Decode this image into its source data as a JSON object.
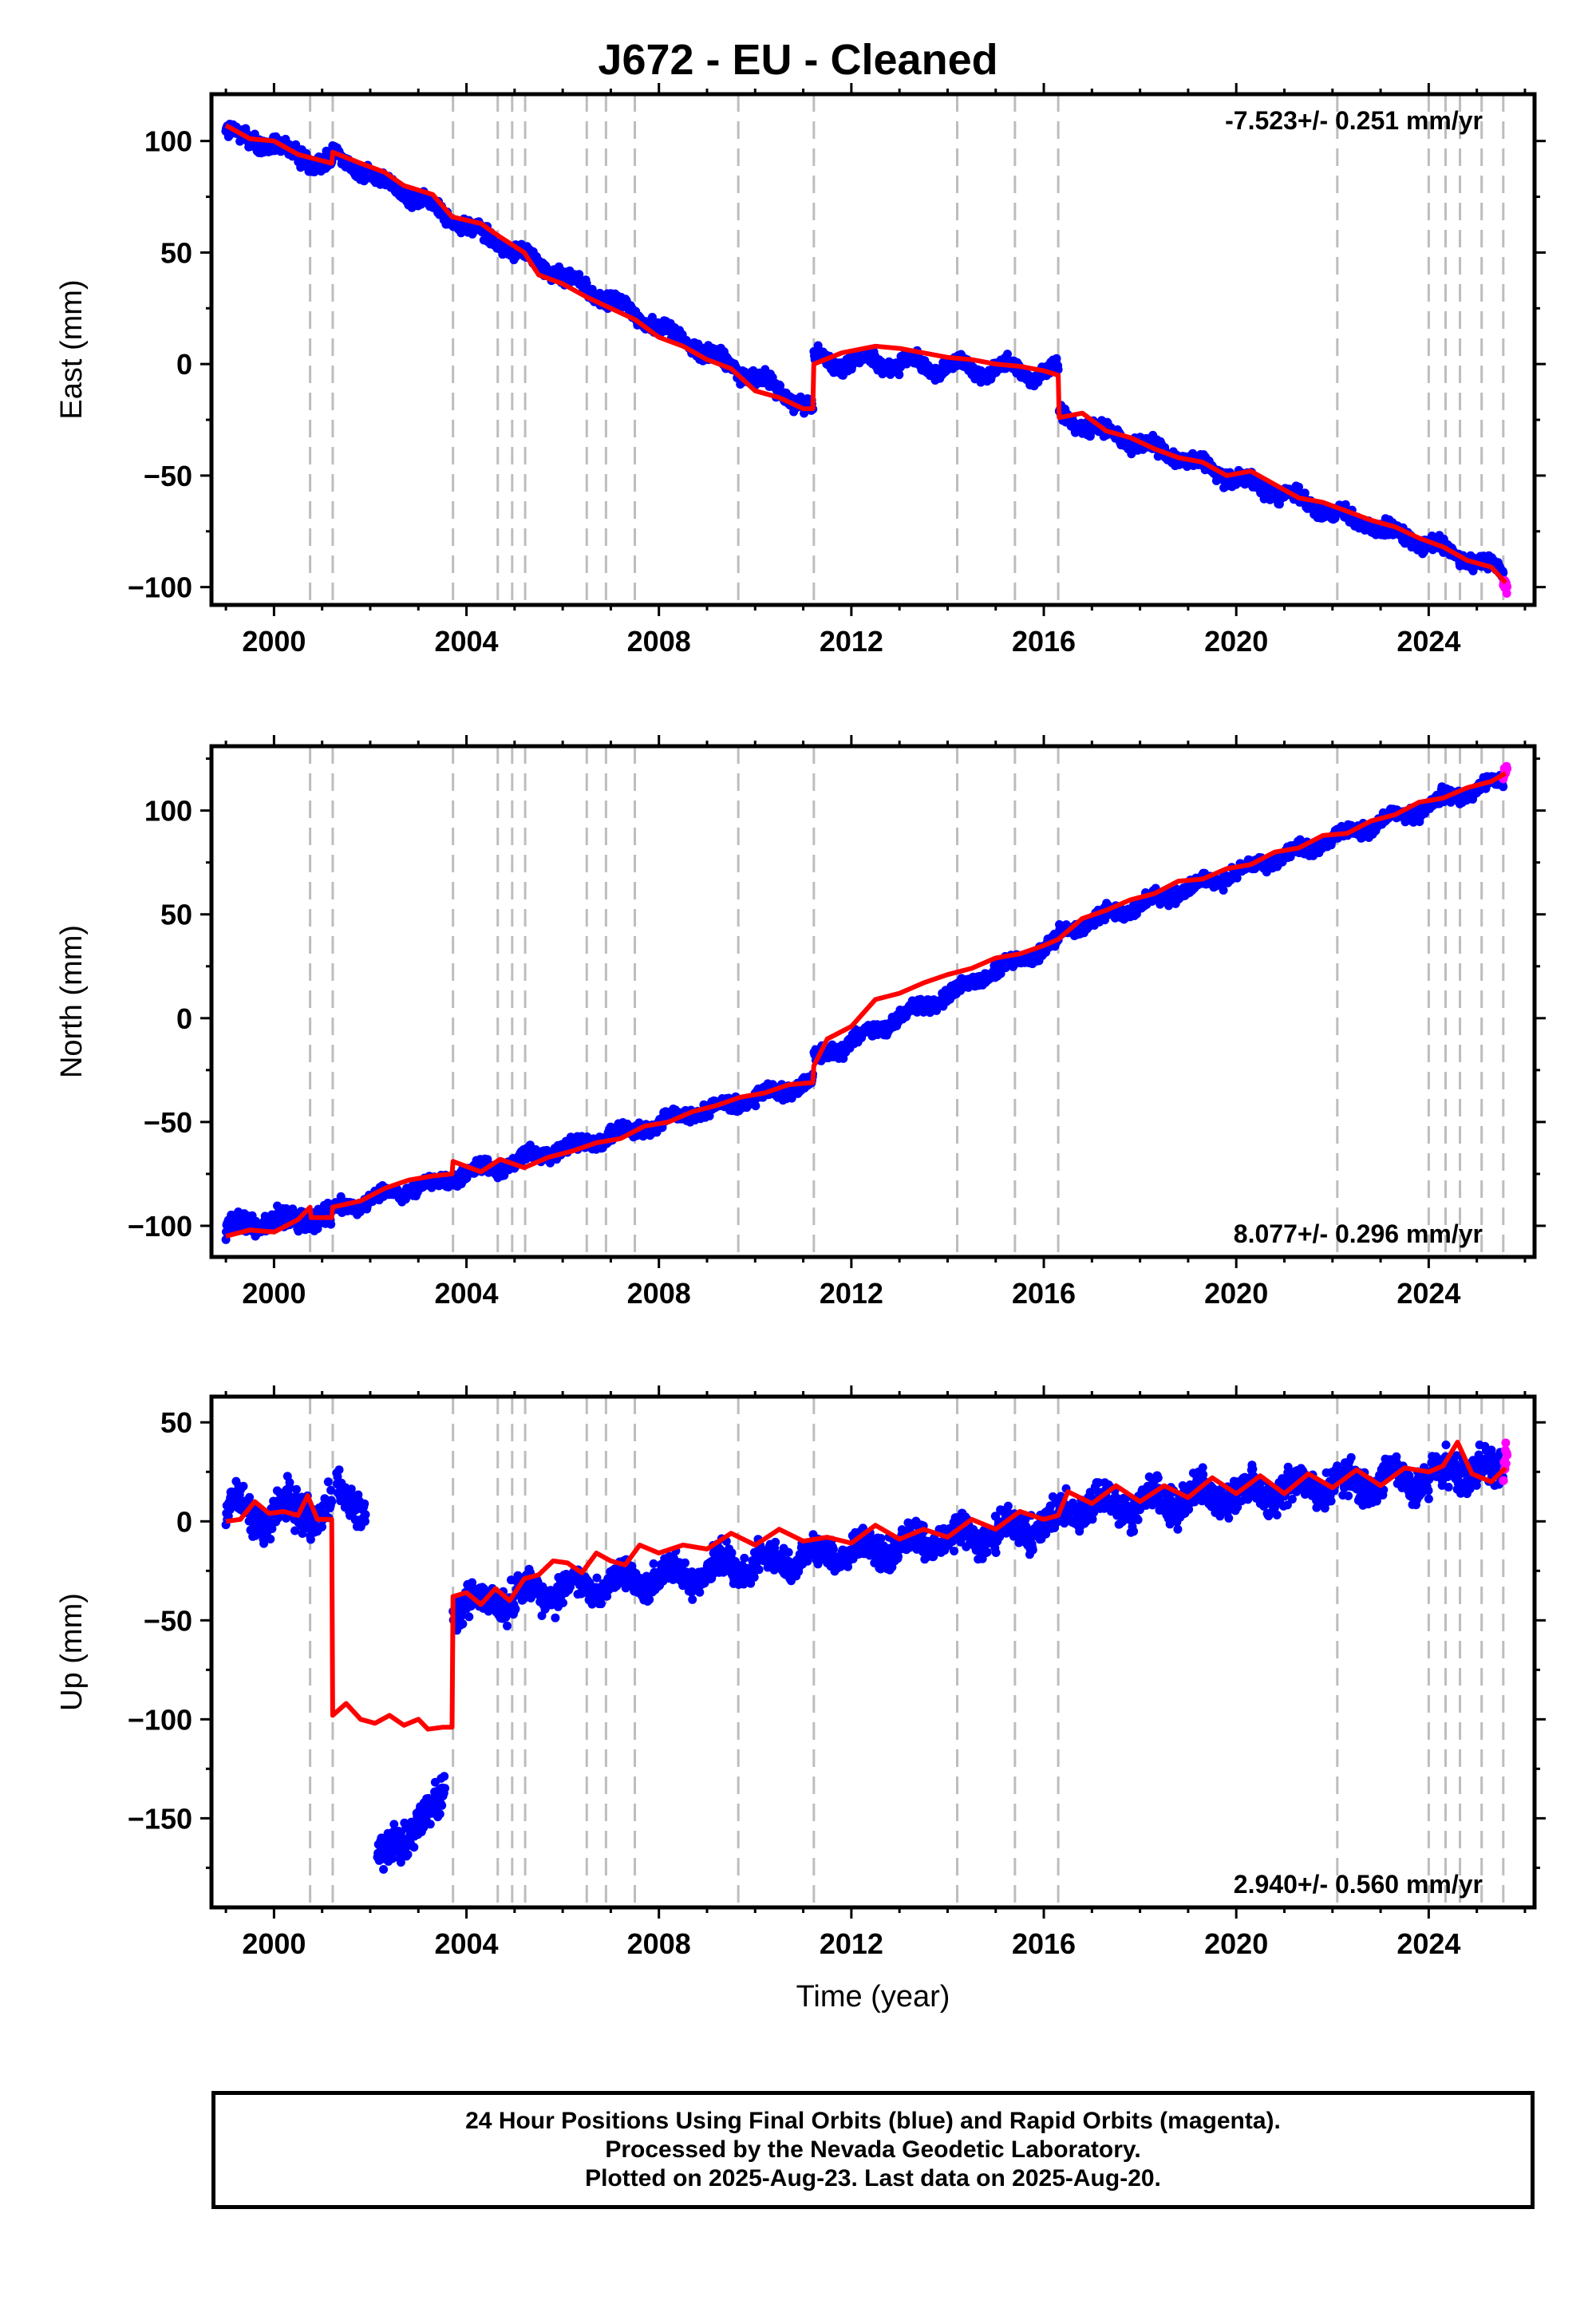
{
  "title": "J672  - EU - Cleaned",
  "xlabel": "Time (year)",
  "footer": {
    "line1": "24 Hour Positions Using Final Orbits (blue) and Rapid Orbits (magenta).",
    "line2": "Processed by the Nevada Geodetic Laboratory.",
    "line3": "Plotted on 2025-Aug-23. Last data on 2025-Aug-20."
  },
  "colors": {
    "final_orbits": "#0000ff",
    "rapid_orbits": "#ff00ff",
    "model": "#ff0000",
    "event_lines": "#bdbdbd"
  },
  "chart_data": [
    {
      "type": "scatter",
      "component": "east",
      "ylabel": "East (mm)",
      "rate_label": "-7.523+/- 0.251 mm/yr",
      "rate_position": "top-right",
      "xlim": [
        1998.7,
        2026.2
      ],
      "ylim": [
        -108,
        121
      ],
      "xticks": [
        2000,
        2004,
        2008,
        2012,
        2016,
        2020,
        2024
      ],
      "yticks": [
        -100,
        -50,
        0,
        50,
        100
      ],
      "grid": false,
      "model_points": [
        [
          1999.0,
          107
        ],
        [
          1999.5,
          101
        ],
        [
          2000.0,
          100
        ],
        [
          2000.5,
          94
        ],
        [
          2001.2,
          90
        ],
        [
          2001.22,
          95
        ],
        [
          2001.8,
          90
        ],
        [
          2002.3,
          86
        ],
        [
          2002.7,
          80
        ],
        [
          2003.3,
          76
        ],
        [
          2003.7,
          66
        ],
        [
          2004.3,
          63
        ],
        [
          2004.7,
          57
        ],
        [
          2005.2,
          50
        ],
        [
          2005.5,
          40
        ],
        [
          2006.0,
          36
        ],
        [
          2006.5,
          30
        ],
        [
          2007.0,
          25
        ],
        [
          2007.5,
          20
        ],
        [
          2008.0,
          12
        ],
        [
          2008.5,
          8
        ],
        [
          2009.0,
          2
        ],
        [
          2009.5,
          -2
        ],
        [
          2010.0,
          -12
        ],
        [
          2010.5,
          -15
        ],
        [
          2011.0,
          -20
        ],
        [
          2011.2,
          -20
        ],
        [
          2011.22,
          0
        ],
        [
          2011.8,
          5
        ],
        [
          2012.5,
          8
        ],
        [
          2013.0,
          7
        ],
        [
          2013.5,
          5
        ],
        [
          2014.0,
          3
        ],
        [
          2014.5,
          2
        ],
        [
          2015.0,
          0
        ],
        [
          2015.5,
          -1
        ],
        [
          2016.0,
          -3
        ],
        [
          2016.3,
          -5
        ],
        [
          2016.32,
          -24
        ],
        [
          2016.8,
          -22
        ],
        [
          2017.3,
          -30
        ],
        [
          2017.8,
          -33
        ],
        [
          2018.3,
          -38
        ],
        [
          2018.8,
          -42
        ],
        [
          2019.3,
          -44
        ],
        [
          2019.8,
          -50
        ],
        [
          2020.3,
          -48
        ],
        [
          2020.8,
          -54
        ],
        [
          2021.3,
          -60
        ],
        [
          2021.8,
          -62
        ],
        [
          2022.3,
          -66
        ],
        [
          2022.8,
          -70
        ],
        [
          2023.3,
          -73
        ],
        [
          2023.8,
          -78
        ],
        [
          2024.3,
          -82
        ],
        [
          2024.8,
          -88
        ],
        [
          2025.3,
          -91
        ],
        [
          2025.6,
          -98
        ]
      ],
      "data_segments": [
        {
          "x0": 1999.0,
          "x1": 2001.2,
          "y0": 104,
          "y1": 89,
          "noise": 4,
          "seasonal": 2
        },
        {
          "x0": 2001.22,
          "x1": 2011.2,
          "y0": 94,
          "y1": -20,
          "noise": 3,
          "seasonal": 2
        },
        {
          "x0": 2011.22,
          "x1": 2016.3,
          "y0": 2,
          "y1": -4,
          "noise": 3,
          "seasonal": 3
        },
        {
          "x0": 2016.32,
          "x1": 2025.55,
          "y0": -23,
          "y1": -93,
          "noise": 3,
          "seasonal": 2
        }
      ],
      "rapid_segment": {
        "x0": 2025.55,
        "x1": 2025.63,
        "y0": -97,
        "y1": -100,
        "noise": 3
      }
    },
    {
      "type": "scatter",
      "component": "north",
      "ylabel": "North (mm)",
      "rate_label": "8.077+/- 0.296 mm/yr",
      "rate_position": "bottom-right",
      "xlim": [
        1998.7,
        2026.2
      ],
      "ylim": [
        -115,
        131
      ],
      "xticks": [
        2000,
        2004,
        2008,
        2012,
        2016,
        2020,
        2024
      ],
      "yticks": [
        -100,
        -50,
        0,
        50,
        100
      ],
      "grid": false,
      "model_points": [
        [
          1999.0,
          -105
        ],
        [
          1999.5,
          -102
        ],
        [
          2000.0,
          -103
        ],
        [
          2000.5,
          -97
        ],
        [
          2000.75,
          -91
        ],
        [
          2000.77,
          -96
        ],
        [
          2001.2,
          -96
        ],
        [
          2001.22,
          -91
        ],
        [
          2001.8,
          -88
        ],
        [
          2002.3,
          -82
        ],
        [
          2002.8,
          -78
        ],
        [
          2003.3,
          -76
        ],
        [
          2003.7,
          -75
        ],
        [
          2003.72,
          -69
        ],
        [
          2004.3,
          -74
        ],
        [
          2004.7,
          -68
        ],
        [
          2005.2,
          -72
        ],
        [
          2005.7,
          -67
        ],
        [
          2006.2,
          -64
        ],
        [
          2006.7,
          -60
        ],
        [
          2007.2,
          -58
        ],
        [
          2007.7,
          -52
        ],
        [
          2008.2,
          -50
        ],
        [
          2008.7,
          -45
        ],
        [
          2009.2,
          -42
        ],
        [
          2009.7,
          -38
        ],
        [
          2010.2,
          -36
        ],
        [
          2010.7,
          -32
        ],
        [
          2011.2,
          -31
        ],
        [
          2011.22,
          -23
        ],
        [
          2011.5,
          -10
        ],
        [
          2012.0,
          -4
        ],
        [
          2012.5,
          9
        ],
        [
          2013.0,
          12
        ],
        [
          2013.5,
          17
        ],
        [
          2014.0,
          21
        ],
        [
          2014.5,
          24
        ],
        [
          2015.0,
          29
        ],
        [
          2015.5,
          31
        ],
        [
          2016.0,
          35
        ],
        [
          2016.3,
          38
        ],
        [
          2016.8,
          48
        ],
        [
          2017.3,
          52
        ],
        [
          2017.8,
          57
        ],
        [
          2018.3,
          60
        ],
        [
          2018.8,
          66
        ],
        [
          2019.3,
          67
        ],
        [
          2019.8,
          72
        ],
        [
          2020.3,
          74
        ],
        [
          2020.8,
          80
        ],
        [
          2021.3,
          82
        ],
        [
          2021.8,
          88
        ],
        [
          2022.3,
          89
        ],
        [
          2022.8,
          95
        ],
        [
          2023.3,
          98
        ],
        [
          2023.8,
          104
        ],
        [
          2024.3,
          106
        ],
        [
          2024.8,
          111
        ],
        [
          2025.3,
          114
        ],
        [
          2025.6,
          118
        ]
      ],
      "data_segments": [
        {
          "x0": 1999.0,
          "x1": 2001.2,
          "y0": -100,
          "y1": -95,
          "noise": 5,
          "seasonal": 2
        },
        {
          "x0": 2001.22,
          "x1": 2011.2,
          "y0": -92,
          "y1": -31,
          "noise": 3,
          "seasonal": 2
        },
        {
          "x0": 2011.22,
          "x1": 2016.3,
          "y0": -20,
          "y1": 37,
          "noise": 3,
          "seasonal": 2
        },
        {
          "x0": 2016.32,
          "x1": 2025.55,
          "y0": 41,
          "y1": 115,
          "noise": 3,
          "seasonal": 2
        }
      ],
      "rapid_segment": {
        "x0": 2025.55,
        "x1": 2025.63,
        "y0": 116,
        "y1": 121,
        "noise": 4
      }
    },
    {
      "type": "scatter",
      "component": "up",
      "ylabel": "Up (mm)",
      "rate_label": "2.940+/- 0.560 mm/yr",
      "rate_position": "bottom-right",
      "xlim": [
        1998.7,
        2026.2
      ],
      "ylim": [
        -195,
        63
      ],
      "xticks": [
        2000,
        2004,
        2008,
        2012,
        2016,
        2020,
        2024
      ],
      "yticks": [
        -150,
        -100,
        -50,
        0,
        50
      ],
      "grid": false,
      "model_points": [
        [
          1999.0,
          0
        ],
        [
          1999.3,
          1
        ],
        [
          1999.6,
          10
        ],
        [
          1999.9,
          4
        ],
        [
          2000.2,
          5
        ],
        [
          2000.5,
          3
        ],
        [
          2000.7,
          13
        ],
        [
          2000.9,
          1
        ],
        [
          2001.2,
          1
        ],
        [
          2001.22,
          -98
        ],
        [
          2001.5,
          -92
        ],
        [
          2001.8,
          -100
        ],
        [
          2002.1,
          -102
        ],
        [
          2002.4,
          -98
        ],
        [
          2002.7,
          -103
        ],
        [
          2003.0,
          -100
        ],
        [
          2003.2,
          -105
        ],
        [
          2003.5,
          -104
        ],
        [
          2003.7,
          -104
        ],
        [
          2003.72,
          -38
        ],
        [
          2004.0,
          -36
        ],
        [
          2004.3,
          -42
        ],
        [
          2004.6,
          -34
        ],
        [
          2004.9,
          -40
        ],
        [
          2005.2,
          -29
        ],
        [
          2005.5,
          -27
        ],
        [
          2005.8,
          -20
        ],
        [
          2006.1,
          -21
        ],
        [
          2006.4,
          -26
        ],
        [
          2006.7,
          -16
        ],
        [
          2007.0,
          -20
        ],
        [
          2007.3,
          -22
        ],
        [
          2007.6,
          -12
        ],
        [
          2008.0,
          -16
        ],
        [
          2008.5,
          -12
        ],
        [
          2009.0,
          -14
        ],
        [
          2009.5,
          -6
        ],
        [
          2010.0,
          -12
        ],
        [
          2010.5,
          -4
        ],
        [
          2011.0,
          -10
        ],
        [
          2011.5,
          -8
        ],
        [
          2012.0,
          -11
        ],
        [
          2012.5,
          -2
        ],
        [
          2013.0,
          -9
        ],
        [
          2013.5,
          -4
        ],
        [
          2014.0,
          -8
        ],
        [
          2014.5,
          1
        ],
        [
          2015.0,
          -4
        ],
        [
          2015.5,
          5
        ],
        [
          2016.0,
          1
        ],
        [
          2016.3,
          3
        ],
        [
          2016.5,
          15
        ],
        [
          2017.0,
          9
        ],
        [
          2017.5,
          18
        ],
        [
          2018.0,
          10
        ],
        [
          2018.5,
          18
        ],
        [
          2019.0,
          12
        ],
        [
          2019.5,
          22
        ],
        [
          2020.0,
          14
        ],
        [
          2020.5,
          23
        ],
        [
          2021.0,
          14
        ],
        [
          2021.5,
          24
        ],
        [
          2022.0,
          17
        ],
        [
          2022.5,
          26
        ],
        [
          2023.0,
          18
        ],
        [
          2023.5,
          27
        ],
        [
          2024.0,
          25
        ],
        [
          2024.3,
          28
        ],
        [
          2024.6,
          40
        ],
        [
          2024.9,
          24
        ],
        [
          2025.3,
          20
        ],
        [
          2025.6,
          27
        ]
      ],
      "data_segments": [
        {
          "x0": 1999.0,
          "x1": 2001.2,
          "y0": 4,
          "y1": 5,
          "noise": 9,
          "seasonal": 6
        },
        {
          "x0": 2001.3,
          "x1": 2001.9,
          "y0": 14,
          "y1": 8,
          "noise": 8,
          "seasonal": 4
        },
        {
          "x0": 2002.15,
          "x1": 2003.55,
          "y0": -172,
          "y1": -140,
          "noise": 9,
          "seasonal": 3
        },
        {
          "x0": 2003.72,
          "x1": 2016.3,
          "y0": -42,
          "y1": -1,
          "noise": 7,
          "seasonal": 5
        },
        {
          "x0": 2016.32,
          "x1": 2025.55,
          "y0": 6,
          "y1": 26,
          "noise": 8,
          "seasonal": 5
        }
      ],
      "rapid_segment": {
        "x0": 2025.55,
        "x1": 2025.63,
        "y0": 24,
        "y1": 36,
        "noise": 10
      }
    }
  ],
  "event_lines": [
    2000.75,
    2001.22,
    2003.72,
    2004.65,
    2004.95,
    2005.22,
    2006.5,
    2006.9,
    2007.5,
    2009.65,
    2011.22,
    2014.2,
    2015.4,
    2016.3,
    2022.1,
    2024.0,
    2024.35,
    2024.65,
    2025.1,
    2025.55
  ]
}
